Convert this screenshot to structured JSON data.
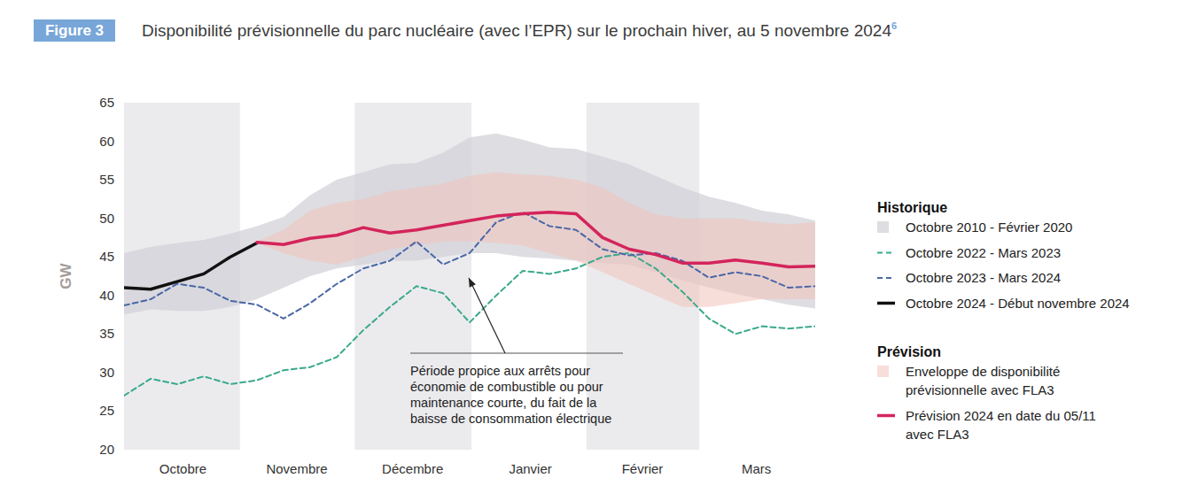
{
  "chart_data": {
    "type": "line",
    "figure_label": "Figure 3",
    "title": "Disponibilité prévisionnelle du parc nucléaire (avec l’EPR) sur le prochain hiver, au 5 novembre 2024",
    "title_note": "6",
    "y_label": "GW",
    "x": [
      0,
      7,
      14,
      21,
      28,
      35,
      42,
      49,
      56,
      63,
      70,
      77,
      84,
      91,
      98,
      105,
      112,
      119,
      126,
      133,
      140,
      147,
      154,
      161,
      168,
      175,
      182
    ],
    "xlim": [
      0,
      182
    ],
    "xticks": [
      {
        "value": 15.5,
        "label": "Octobre"
      },
      {
        "value": 45.5,
        "label": "Novembre"
      },
      {
        "value": 76,
        "label": "Décembre"
      },
      {
        "value": 107,
        "label": "Janvier"
      },
      {
        "value": 136.5,
        "label": "Février"
      },
      {
        "value": 166.5,
        "label": "Mars"
      }
    ],
    "ylim": [
      20,
      65
    ],
    "yticks": [
      20,
      25,
      30,
      35,
      40,
      45,
      50,
      55,
      60,
      65
    ],
    "grid": false,
    "legend": "right",
    "legend_groups": [
      "Historique",
      "Prévision"
    ],
    "annotation": [
      "Période propice aux arrêts pour",
      "économie de combustible ou pour",
      "maintenance courte, du fait de la",
      "baisse de consommation électrique"
    ],
    "series": [
      {
        "name": "Octobre 2010 - Février 2020",
        "group": "Historique",
        "type": "area",
        "color": "#d2d2d8",
        "values": [
          37.5,
          38.2,
          38,
          38,
          38.5,
          39.5,
          41,
          42.5,
          43.5,
          44,
          44.5,
          44.5,
          45,
          45.5,
          45.5,
          45,
          44.8,
          44.5,
          44.2,
          44,
          43,
          42,
          41,
          40.2,
          39.5,
          38.8,
          38.3
        ],
        "high": [
          45.5,
          46.3,
          46.8,
          47.2,
          48,
          49,
          50.2,
          53,
          55,
          56,
          57,
          57.2,
          58.5,
          60.5,
          61,
          60.2,
          59.2,
          59,
          58,
          57,
          55.5,
          54,
          52.8,
          52,
          51,
          50.5,
          49.7
        ]
      },
      {
        "name": "Octobre 2022 - Mars 2023",
        "group": "Historique",
        "type": "line",
        "color": "#3aa98c",
        "line_style": "dashed",
        "values": [
          27,
          29.2,
          28.5,
          29.5,
          28.5,
          29,
          30.3,
          30.7,
          32,
          35.5,
          38.5,
          41.2,
          40.3,
          36.5,
          40,
          43.2,
          42.8,
          43.5,
          45,
          45.5,
          43.5,
          40.5,
          37,
          35,
          36,
          35.7,
          36
        ]
      },
      {
        "name": "Octobre 2023 - Mars 2024",
        "group": "Historique",
        "type": "line",
        "color": "#4a67a6",
        "line_style": "dashed",
        "values": [
          38.7,
          39.5,
          41.5,
          41,
          39.3,
          38.8,
          37,
          39,
          41.5,
          43.5,
          44.5,
          47,
          44,
          45.5,
          49.5,
          50.8,
          49,
          48.5,
          46,
          45.2,
          45.5,
          44.5,
          42.3,
          43,
          42.5,
          41,
          41.2
        ]
      },
      {
        "name": "Octobre 2024 - Début novembre 2024",
        "group": "Historique",
        "type": "line",
        "color": "#111111",
        "line_style": "solid",
        "values": [
          41,
          40.8,
          41.8,
          42.8,
          45,
          46.8,
          null,
          null,
          null,
          null,
          null,
          null,
          null,
          null,
          null,
          null,
          null,
          null,
          null,
          null,
          null,
          null,
          null,
          null,
          null,
          null,
          null
        ]
      },
      {
        "name": "Enveloppe de disponibilité prévisionnelle avec FLA3",
        "group": "Prévision",
        "type": "area",
        "color": "#f3c3ba",
        "values": [
          null,
          null,
          null,
          null,
          null,
          46.8,
          45.5,
          44.5,
          44,
          45,
          46,
          46.5,
          47,
          47,
          46.8,
          46.5,
          45.5,
          44.5,
          43,
          41.5,
          40,
          38.5,
          38.5,
          39,
          39.5,
          39.5,
          39.5
        ],
        "high": [
          null,
          null,
          null,
          null,
          null,
          47,
          48.5,
          51,
          52,
          52.5,
          53.5,
          54,
          54.5,
          55.5,
          56,
          55.7,
          55.5,
          55,
          54,
          52,
          50.5,
          50,
          50,
          50,
          49.5,
          49.2,
          49.5
        ]
      },
      {
        "name": "Prévision 2024 en date du 05/11 avec FLA3",
        "group": "Prévision",
        "type": "line",
        "color": "#d4245c",
        "line_style": "solid",
        "values": [
          null,
          null,
          null,
          null,
          null,
          46.9,
          46.6,
          47.4,
          47.8,
          48.8,
          48.1,
          48.5,
          49.1,
          49.7,
          50.3,
          50.6,
          50.8,
          50.6,
          47.5,
          46,
          45.3,
          44.2,
          44.2,
          44.6,
          44.2,
          43.7,
          43.8
        ]
      }
    ]
  }
}
